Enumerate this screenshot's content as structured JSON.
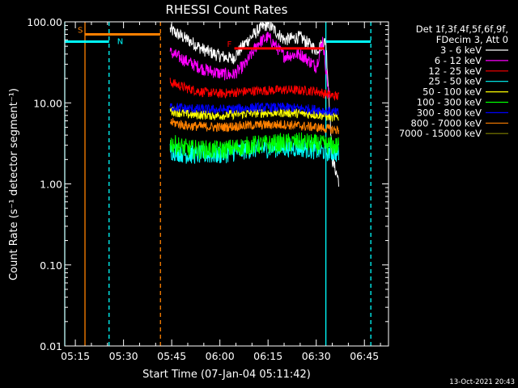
{
  "chart_data": {
    "type": "line",
    "title": "RHESSI Count Rates",
    "xlabel": "Start Time (07-Jan-04 05:11:42)",
    "ylabel": "Count Rate (s⁻¹ detector segment⁻¹)",
    "yscale": "log",
    "ylim": [
      0.01,
      100
    ],
    "xlim": [
      "05:11:42",
      "06:52:30"
    ],
    "x_ticks": [
      "05:15",
      "05:30",
      "05:45",
      "06:00",
      "06:15",
      "06:30",
      "06:45"
    ],
    "y_ticks": [
      "0.01",
      "0.10",
      "1.00",
      "10.00",
      "100.00"
    ],
    "legend": {
      "position": "top-right",
      "header_lines": [
        "Det 1f,3f,4f,5f,6f,9f,",
        "FDecim 3, Att 0"
      ]
    },
    "series": [
      {
        "name": "3 - 6 keV",
        "color": "#ffffff",
        "x": [
          "05:44:30",
          "05:50",
          "05:55",
          "06:00",
          "06:04",
          "06:08",
          "06:12",
          "06:15",
          "06:20",
          "06:25",
          "06:30",
          "06:33",
          "06:35",
          "06:37"
        ],
        "y": [
          80,
          60,
          45,
          38,
          35,
          55,
          80,
          95,
          60,
          65,
          45,
          58,
          2,
          1.1
        ]
      },
      {
        "name": "6 - 12 keV",
        "color": "#ff00ff",
        "x": [
          "05:44:30",
          "05:50",
          "05:55",
          "06:00",
          "06:04",
          "06:08",
          "06:12",
          "06:15",
          "06:20",
          "06:25",
          "06:30",
          "06:32",
          "06:34"
        ],
        "y": [
          42,
          32,
          26,
          23,
          22,
          30,
          55,
          65,
          38,
          40,
          28,
          60,
          12
        ]
      },
      {
        "name": "12 - 25 keV",
        "color": "#ff0000",
        "x": [
          "05:44:30",
          "05:50",
          "05:55",
          "06:00",
          "06:10",
          "06:20",
          "06:30",
          "06:34",
          "06:37"
        ],
        "y": [
          18,
          15,
          13.5,
          13,
          14,
          14.5,
          14,
          12.5,
          12
        ]
      },
      {
        "name": "25 - 50 keV",
        "color": "#00ffff",
        "x": [
          "05:44:30",
          "05:50",
          "06:00",
          "06:10",
          "06:20",
          "06:25",
          "06:30",
          "06:33",
          "06:37"
        ],
        "y": [
          2.6,
          2.3,
          2.3,
          2.7,
          2.8,
          2.8,
          2.6,
          2.5,
          2.4
        ]
      },
      {
        "name": "50 - 100 keV",
        "color": "#ffff00",
        "x": [
          "05:44:30",
          "05:50",
          "06:00",
          "06:10",
          "06:20",
          "06:30",
          "06:37"
        ],
        "y": [
          8,
          7.2,
          7,
          7.5,
          7.6,
          7.2,
          6.5
        ]
      },
      {
        "name": "100 - 300 keV",
        "color": "#00ff00",
        "x": [
          "05:44:30",
          "05:50",
          "06:00",
          "06:10",
          "06:20",
          "06:25",
          "06:30",
          "06:37"
        ],
        "y": [
          3.2,
          2.7,
          2.6,
          3.0,
          3.2,
          3.3,
          3.1,
          2.9
        ]
      },
      {
        "name": "300 - 800 keV",
        "color": "#0000ff",
        "x": [
          "05:44:30",
          "05:50",
          "06:00",
          "06:10",
          "06:20",
          "06:30",
          "06:37"
        ],
        "y": [
          9,
          8.5,
          8.2,
          8.7,
          8.8,
          8.3,
          7.5
        ]
      },
      {
        "name": "800 - 7000 keV",
        "color": "#ff8000",
        "x": [
          "05:44:30",
          "05:50",
          "06:00",
          "06:10",
          "06:20",
          "06:30",
          "06:37"
        ],
        "y": [
          5.8,
          5.2,
          5.0,
          5.3,
          5.4,
          5.0,
          4.6
        ]
      },
      {
        "name": "7000 - 15000 keV",
        "color": "#808000",
        "x": [],
        "y": []
      }
    ],
    "segments": [
      {
        "label": "S",
        "color": "#ff8000",
        "x": [
          "05:18:00",
          "05:41:30"
        ],
        "y": 70
      },
      {
        "label": "N",
        "color": "#00ffff",
        "x": [
          "05:11:42",
          "05:25:30"
        ],
        "y": 57
      },
      {
        "label": "",
        "color": "#00ffff",
        "x": [
          "06:33:00",
          "06:47:00"
        ],
        "y": 57
      },
      {
        "label": "F",
        "color": "#ff0000",
        "x": [
          "06:04:30",
          "06:32:30"
        ],
        "y": 47
      }
    ],
    "markers": [
      {
        "color": "#00ffff",
        "style": "solid",
        "x": "05:11:42"
      },
      {
        "color": "#ff8000",
        "style": "solid",
        "x": "05:18:00"
      },
      {
        "color": "#00ffff",
        "style": "dashed",
        "x": "05:25:30"
      },
      {
        "color": "#ff8000",
        "style": "dashed",
        "x": "05:41:30"
      },
      {
        "color": "#00ffff",
        "style": "solid",
        "x": "06:33:00"
      },
      {
        "color": "#00ffff",
        "style": "dashed",
        "x": "06:47:00"
      }
    ],
    "footer_stamp": "13-Oct-2021 20:43"
  }
}
